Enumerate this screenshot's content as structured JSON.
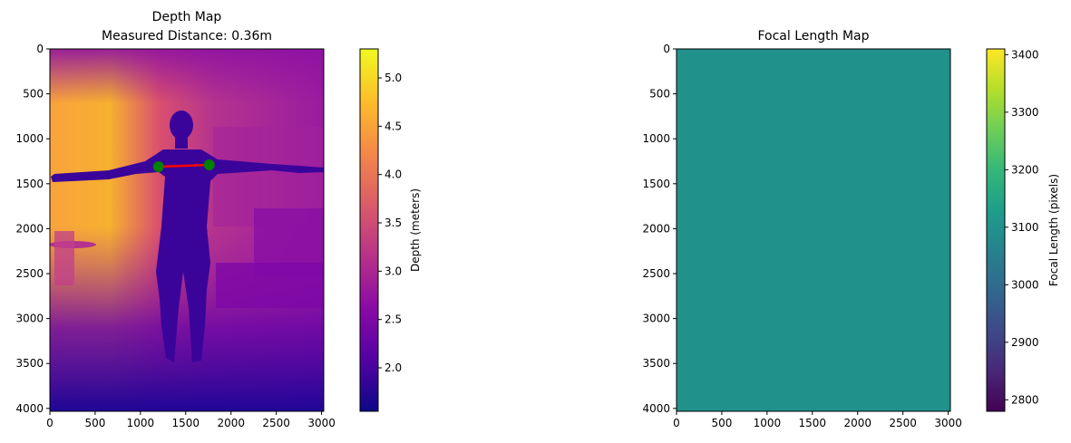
{
  "figure": {
    "background": "#ffffff"
  },
  "chart_data": [
    {
      "type": "heatmap",
      "title": "Depth Map",
      "subtitle": "Measured Distance: 0.36m",
      "xlabel": "",
      "ylabel": "",
      "xlim": [
        0,
        3024
      ],
      "ylim": [
        4032,
        0
      ],
      "x_ticks": [
        0,
        500,
        1000,
        1500,
        2000,
        2500,
        3000
      ],
      "y_ticks": [
        0,
        500,
        1000,
        1500,
        2000,
        2500,
        3000,
        3500,
        4000
      ],
      "colormap": "plasma",
      "colormap_stops": [
        "#0d0887",
        "#5302a3",
        "#8b0aa5",
        "#b83289",
        "#db5c68",
        "#f48849",
        "#febd2a",
        "#f0f921"
      ],
      "colorbar": {
        "label": "Depth (meters)",
        "range": [
          1.55,
          5.3
        ],
        "ticks": [
          2.0,
          2.5,
          3.0,
          3.5,
          4.0,
          4.5,
          5.0
        ],
        "tick_labels": [
          "2.0",
          "2.5",
          "3.0",
          "3.5",
          "4.0",
          "4.5",
          "5.0"
        ]
      },
      "measurement": {
        "points": [
          [
            1200,
            1310
          ],
          [
            1760,
            1290
          ]
        ],
        "line_color": "#ff0000",
        "marker_color": "#008000"
      },
      "grid": false
    },
    {
      "type": "heatmap",
      "title": "Focal Length Map",
      "xlabel": "",
      "ylabel": "",
      "xlim": [
        0,
        3024
      ],
      "ylim": [
        4032,
        0
      ],
      "x_ticks": [
        0,
        500,
        1000,
        1500,
        2000,
        2500,
        3000
      ],
      "y_ticks": [
        0,
        500,
        1000,
        1500,
        2000,
        2500,
        3000,
        3500,
        4000
      ],
      "uniform_value": 3100,
      "fill_color": "#21918c",
      "colormap": "viridis",
      "colormap_stops": [
        "#440154",
        "#482878",
        "#3e4989",
        "#31688e",
        "#26828e",
        "#1f9e89",
        "#35b779",
        "#6ece58",
        "#b5de2b",
        "#fde725"
      ],
      "colorbar": {
        "label": "Focal Length (pixels)",
        "range": [
          2780,
          3410
        ],
        "ticks": [
          2800,
          2900,
          3000,
          3100,
          3200,
          3300,
          3400
        ],
        "tick_labels": [
          "2800",
          "2900",
          "3000",
          "3100",
          "3200",
          "3300",
          "3400"
        ]
      },
      "grid": false
    }
  ]
}
